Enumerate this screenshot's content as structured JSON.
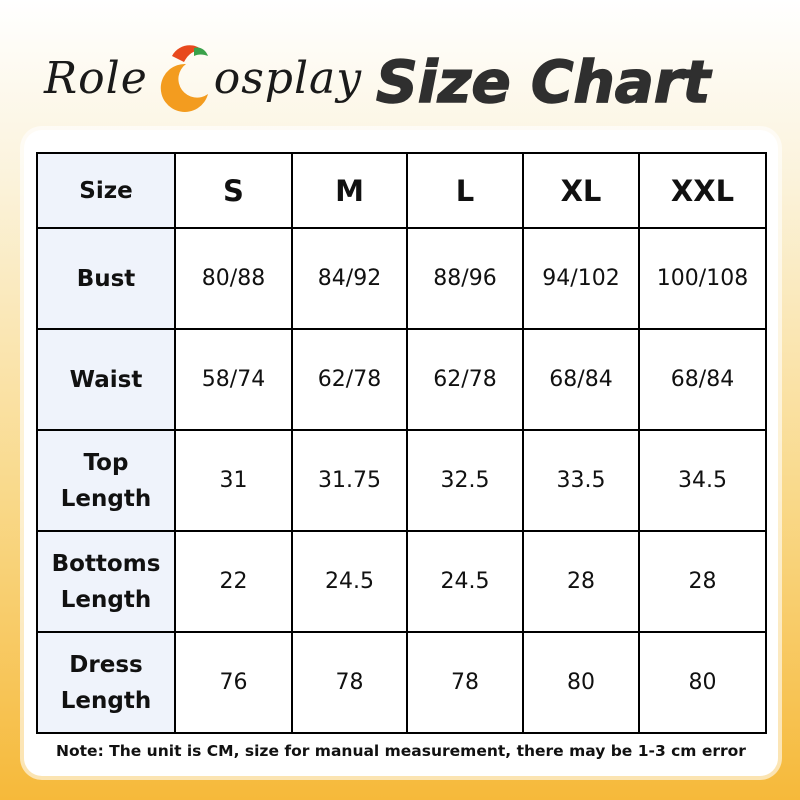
{
  "header": {
    "brand_left": "Role",
    "brand_right": "osplay",
    "title": "Size Chart",
    "logo_icon": "crescent-logo-icon",
    "logo_colors": [
      "#f39c1f",
      "#e8491d",
      "#3aa14a"
    ]
  },
  "table": {
    "header_label": "Size",
    "sizes": [
      "S",
      "M",
      "L",
      "XL",
      "XXL"
    ],
    "rows": [
      {
        "label_lines": [
          "Bust"
        ],
        "values": [
          "80/88",
          "84/92",
          "88/96",
          "94/102",
          "100/108"
        ]
      },
      {
        "label_lines": [
          "Waist"
        ],
        "values": [
          "58/74",
          "62/78",
          "62/78",
          "68/84",
          "68/84"
        ]
      },
      {
        "label_lines": [
          "Top",
          "Length"
        ],
        "values": [
          "31",
          "31.75",
          "32.5",
          "33.5",
          "34.5"
        ]
      },
      {
        "label_lines": [
          "Bottoms",
          "Length"
        ],
        "values": [
          "22",
          "24.5",
          "24.5",
          "28",
          "28"
        ]
      },
      {
        "label_lines": [
          "Dress",
          "Length"
        ],
        "values": [
          "76",
          "78",
          "78",
          "80",
          "80"
        ]
      }
    ]
  },
  "note": "Note: The unit is CM, size for manual measurement, there may be 1-3 cm error"
}
